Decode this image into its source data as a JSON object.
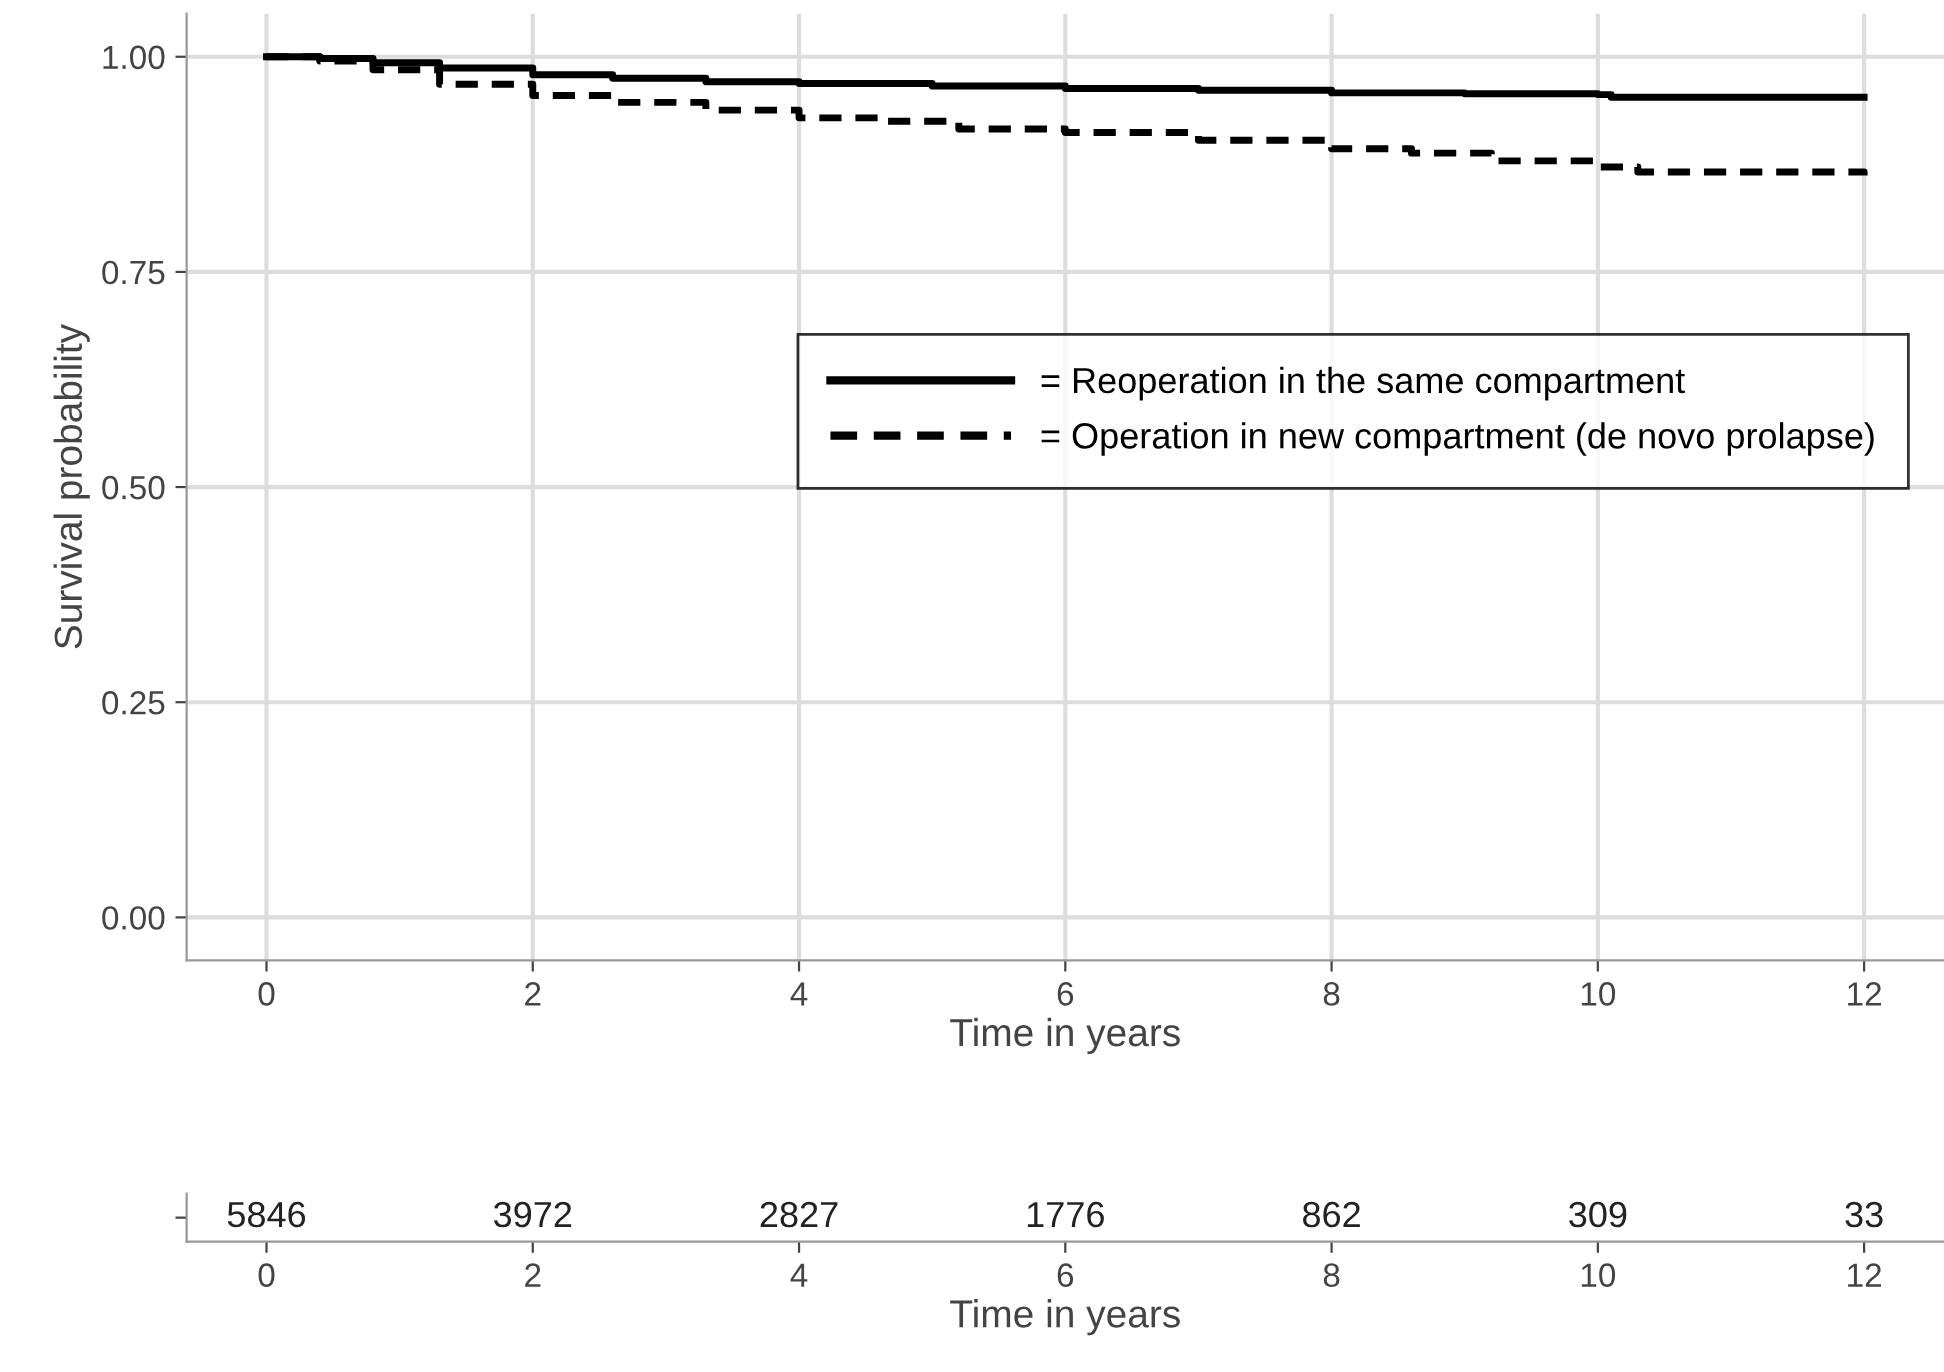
{
  "chart_data": [
    {
      "type": "step",
      "ylabel": "Survival probability",
      "xlabel": "Time in years",
      "series": [
        {
          "name": "= Reoperation in the same compartment",
          "color": "#000000",
          "line_style": "solid",
          "x": [
            0,
            0.4,
            0.8,
            1.3,
            2,
            2.6,
            3.3,
            4,
            5,
            6,
            7,
            8,
            9,
            10,
            10.1,
            12
          ],
          "values": [
            1.0,
            0.998,
            0.993,
            0.987,
            0.979,
            0.975,
            0.971,
            0.969,
            0.966,
            0.963,
            0.961,
            0.958,
            0.957,
            0.956,
            0.953,
            0.953
          ]
        },
        {
          "name": "= Operation in new compartment (de novo prolapse)",
          "color": "#000000",
          "line_style": "dashed",
          "x": [
            0,
            0.4,
            0.8,
            1.3,
            2,
            2.6,
            3.3,
            4,
            4.6,
            5.2,
            6,
            7,
            8,
            8.6,
            9.2,
            10,
            10.3,
            12
          ],
          "values": [
            1.0,
            0.995,
            0.985,
            0.968,
            0.955,
            0.947,
            0.938,
            0.929,
            0.925,
            0.916,
            0.912,
            0.903,
            0.893,
            0.888,
            0.879,
            0.872,
            0.866,
            0.862
          ]
        }
      ],
      "xlim": [
        -0.6,
        12.6
      ],
      "ylim": [
        -0.05,
        1.05
      ],
      "xticks": [
        0,
        2,
        4,
        6,
        8,
        10,
        12
      ],
      "yticks": [
        {
          "value": 0,
          "label": "0.00"
        },
        {
          "value": 0.25,
          "label": "0.25"
        },
        {
          "value": 0.5,
          "label": "0.50"
        },
        {
          "value": 0.75,
          "label": "0.75"
        },
        {
          "value": 1,
          "label": "1.00"
        }
      ],
      "grid": true,
      "legend": "right"
    },
    {
      "type": "heatmap",
      "xlabel": "Time in years",
      "categories": [
        "0",
        "2",
        "4",
        "6",
        "8",
        "10",
        "12"
      ],
      "y_categories": [
        null
      ],
      "cells": [
        [
          5846,
          3972,
          2827,
          1776,
          862,
          309,
          33
        ]
      ],
      "data_labels": true
    }
  ]
}
